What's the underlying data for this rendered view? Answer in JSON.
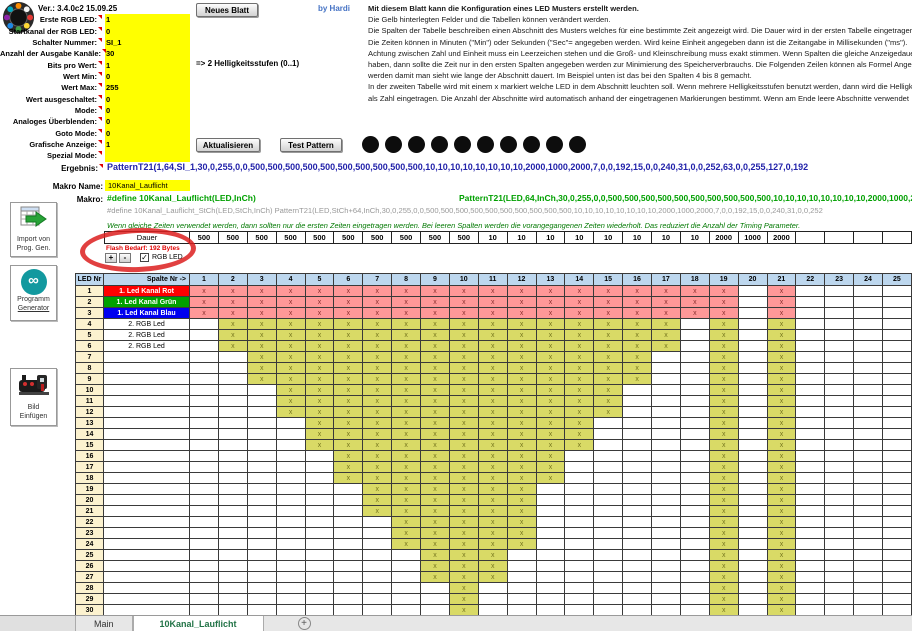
{
  "header": {
    "version": "Ver.: 3.4.0c2 15.09.25",
    "by": "by Hardi",
    "neues_blatt": "Neues Blatt",
    "aktualisieren": "Aktualisieren",
    "test_pattern": "Test Pattern",
    "bits_hint": "=> 2 Helligkeitsstufen (0..1)"
  },
  "form": {
    "rows": [
      {
        "label": "Erste RGB LED:",
        "value": "1"
      },
      {
        "label": "Startkanal der RGB LED:",
        "value": "0"
      },
      {
        "label": "Schalter Nummer:",
        "value": "SI_1"
      },
      {
        "label": "Anzahl der Ausgabe Kanäle:",
        "value": "30"
      },
      {
        "label": "Bits pro Wert:",
        "value": "1"
      },
      {
        "label": "Wert Min:",
        "value": "0"
      },
      {
        "label": "Wert Max:",
        "value": "255"
      },
      {
        "label": "Wert ausgeschaltet:",
        "value": "0"
      },
      {
        "label": "Mode:",
        "value": "0"
      },
      {
        "label": "Analoges Überblenden:",
        "value": "0"
      },
      {
        "label": "Goto Mode:",
        "value": "0"
      },
      {
        "label": "Grafische Anzeige:",
        "value": "1"
      },
      {
        "label": "Spezial Mode:",
        "value": ""
      }
    ]
  },
  "instructions": [
    "Mit diesem Blatt kann die Konfiguration eines LED Musters erstellt werden.",
    "Die Gelb hinterlegten Felder und die Tabellen können verändert werden.",
    "Die Spalten der Tabelle beschreiben einen Abschnitt des Musters welches für eine bestimmte Zeit angezeigt wird. Die Dauer wird in der ersten Tabelle eingetragen.",
    "Die Zeiten können in Minuten (\"Min\") oder Sekunden (\"Sec\"= angegeben werden. Wird keine Einheit angegeben dann ist die Zeitangabe in Millisekunden (\"ms\").",
    "Achtung zwischen Zahl und Einheit muss ein Leerzeichen stehen und die Groß- und Kleinschreibung muss exakt stimmen. Wenn Spalten die gleiche Anzeigedauer",
    "haben, dann sollte die Zeit nur in den ersten Spalten angegeben werden zur Minimierung des Speicherverbrauchs. Die Folgenden Zeilen können als Formel Angegeben",
    "werden damit man sieht wie lange der Abschnitt dauert. Im Beispiel unten ist das bei den Spalten 4 bis 8 gemacht.",
    "In der zweiten Tabelle wird mit einem x markiert welche LED in dem Abschnitt leuchten soll. Wenn mehrere Helligkeitsstufen benutzt werden, dann wird die Helligkeit",
    "als Zahl eingetragen. Die Anzahl der Abschnitte wird automatisch anhand der eingetragenen Markierungen bestimmt. Wenn am Ende leere Abschnitte verwendet"
  ],
  "sidebar": {
    "import": {
      "line1": "Import von",
      "line2": "Prog. Gen."
    },
    "programm": {
      "line1": "Programm",
      "line2": "Generator"
    },
    "bild": {
      "line1": "Bild",
      "line2": "Einfügen"
    }
  },
  "results": {
    "ergebnis_label": "Ergebnis:",
    "ergebnis": "PatternT21(1,64,SI_1,30,0,255,0,0,500,500,500,500,500,500,500,500,500,500,10,10,10,10,10,10,10,10,2000,1000,2000,7,0,0,192,15,0,0,240,31,0,0,252,63,0,0,255,127,0,192",
    "makro_name_label": "Makro Name:",
    "makro_name": "10Kanal_Lauflicht",
    "makro_label": "Makro:",
    "makro_define": "#define 10Kanal_Lauflicht(LED,InCh)",
    "makro_pattern": "PatternT21(LED,64,InCh,30,0,255,0,0,500,500,500,500,500,500,500,500,500,500,10,10,10,10,10,10,10,10,2000,1000,2000,7,0,0,192,15,0,0,240,31,0,0,252,63,0,0,255,127,0,192",
    "makro_stch": "#define 10Kanal_Lauflicht_StCh(LED,StCh,InCh)    PatternT21(LED,StCh+64,InCh,30,0,255,0,0,500,500,500,500,500,500,500,500,500,500,10,10,10,10,10,10,10,10,2000,1000,2000,7,0,0,192,15,0,0,240,31,0,0,252",
    "note": "Wenn gleiche Zeiten verwendet werden, dann sollten nur die ersten Zeiten eingetragen werden. Bei leeren Spalten werden die vorangegangenen Zeiten wiederholt. Das reduziert die Anzahl der Timing Parameter."
  },
  "led_preview": {
    "count": 10
  },
  "duration": {
    "label": "Dauer",
    "values": [
      "500",
      "500",
      "500",
      "500",
      "500",
      "500",
      "500",
      "500",
      "500",
      "500",
      "10",
      "10",
      "10",
      "10",
      "10",
      "10",
      "10",
      "10",
      "2000",
      "1000",
      "2000",
      "",
      "",
      "",
      ""
    ]
  },
  "controls": {
    "flash_info": "Flash Bedarf: 192 Bytes",
    "plus": "+",
    "minus": "-",
    "rgb_led_label": "RGB LED",
    "rgb_led_checked": "✓"
  },
  "grid": {
    "corner": "LED Nr",
    "col_header": "Spalte Nr ->",
    "columns": 25,
    "stripe_cols": [
      19,
      21
    ],
    "mark": "x",
    "rows": [
      {
        "nr": 1,
        "label": "1. Led Kanal  Rot",
        "bg": "#FF0000",
        "fg": "#FFFFFF",
        "from": 1,
        "to": 18,
        "tone": "red"
      },
      {
        "nr": 2,
        "label": "1. Led Kanal Grün",
        "bg": "#00A000",
        "fg": "#FFFFFF",
        "from": 1,
        "to": 18,
        "tone": "red"
      },
      {
        "nr": 3,
        "label": "1. Led Kanal Blau",
        "bg": "#0000F0",
        "fg": "#FFFFFF",
        "from": 1,
        "to": 18,
        "tone": "red"
      },
      {
        "nr": 4,
        "label": "2. RGB Led",
        "from": 2,
        "to": 17,
        "tone": "yellow"
      },
      {
        "nr": 5,
        "label": "2. RGB Led",
        "from": 2,
        "to": 17,
        "tone": "yellow"
      },
      {
        "nr": 6,
        "label": "2. RGB Led",
        "from": 2,
        "to": 17,
        "tone": "yellow"
      },
      {
        "nr": 7,
        "label": "",
        "from": 3,
        "to": 16,
        "tone": "yellow"
      },
      {
        "nr": 8,
        "label": "",
        "from": 3,
        "to": 16,
        "tone": "yellow"
      },
      {
        "nr": 9,
        "label": "",
        "from": 3,
        "to": 16,
        "tone": "yellow"
      },
      {
        "nr": 10,
        "label": "",
        "from": 4,
        "to": 15,
        "tone": "yellow"
      },
      {
        "nr": 11,
        "label": "",
        "from": 4,
        "to": 15,
        "tone": "yellow"
      },
      {
        "nr": 12,
        "label": "",
        "from": 4,
        "to": 15,
        "tone": "yellow"
      },
      {
        "nr": 13,
        "label": "",
        "from": 5,
        "to": 14,
        "tone": "yellow"
      },
      {
        "nr": 14,
        "label": "",
        "from": 5,
        "to": 14,
        "tone": "yellow"
      },
      {
        "nr": 15,
        "label": "",
        "from": 5,
        "to": 14,
        "tone": "yellow"
      },
      {
        "nr": 16,
        "label": "",
        "from": 6,
        "to": 13,
        "tone": "yellow"
      },
      {
        "nr": 17,
        "label": "",
        "from": 6,
        "to": 13,
        "tone": "yellow"
      },
      {
        "nr": 18,
        "label": "",
        "from": 6,
        "to": 13,
        "tone": "yellow"
      },
      {
        "nr": 19,
        "label": "",
        "from": 7,
        "to": 12,
        "tone": "yellow"
      },
      {
        "nr": 20,
        "label": "",
        "from": 7,
        "to": 12,
        "tone": "yellow"
      },
      {
        "nr": 21,
        "label": "",
        "from": 7,
        "to": 12,
        "tone": "yellow"
      },
      {
        "nr": 22,
        "label": "",
        "from": 8,
        "to": 12,
        "tone": "yellow"
      },
      {
        "nr": 23,
        "label": "",
        "from": 8,
        "to": 12,
        "tone": "yellow"
      },
      {
        "nr": 24,
        "label": "",
        "from": 8,
        "to": 12,
        "tone": "yellow"
      },
      {
        "nr": 25,
        "label": "",
        "from": 9,
        "to": 11,
        "tone": "yellow"
      },
      {
        "nr": 26,
        "label": "",
        "from": 9,
        "to": 11,
        "tone": "yellow"
      },
      {
        "nr": 27,
        "label": "",
        "from": 9,
        "to": 11,
        "tone": "yellow"
      },
      {
        "nr": 28,
        "label": "",
        "from": 10,
        "to": 10,
        "tone": "yellow"
      },
      {
        "nr": 29,
        "label": "",
        "from": 10,
        "to": 10,
        "tone": "yellow"
      },
      {
        "nr": 30,
        "label": "",
        "from": 10,
        "to": 10,
        "tone": "yellow"
      }
    ]
  },
  "tabs": {
    "main": "Main",
    "active": "10Kanal_Lauflicht",
    "plus": "+"
  },
  "colors": {
    "input_yellow": "#FFFF00",
    "cell_yellow": "#D9DA66",
    "cell_pink": "#FF9898",
    "header_blue": "#BDD7EE",
    "rownum_beige": "#FCF2CF",
    "tab_green": "#217346",
    "ergebnis_blue": "#2222AA",
    "makro_green": "#00A000",
    "annotation_red": "#DC1E1E"
  }
}
